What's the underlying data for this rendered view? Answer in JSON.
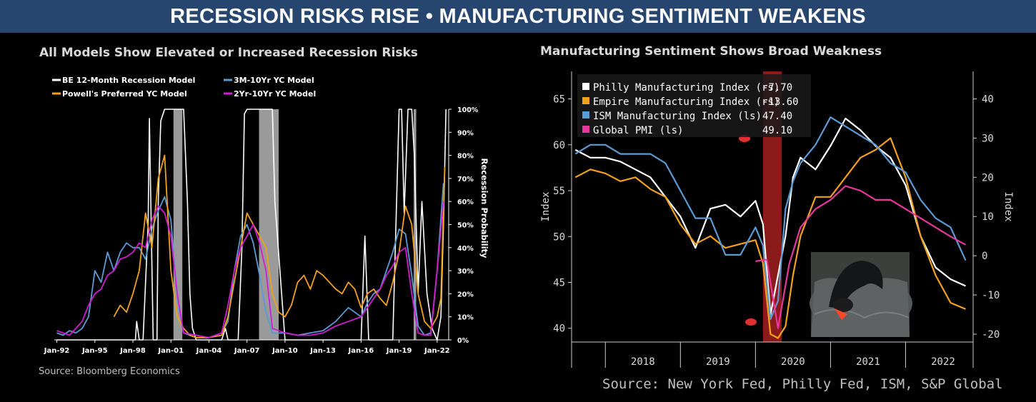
{
  "banner": {
    "title": "RECESSION RISKS RISE • MANUFACTURING SENTIMENT WEAKENS",
    "background": "#26466f"
  },
  "left_panel": {
    "source": "Source: Bloomberg Economics"
  },
  "right_panel": {
    "source": "Source: New York Fed, Philly Fed, ISM, S&P Global"
  },
  "chart_data": [
    {
      "type": "line",
      "title": "All Models Show Elevated or Increased Recession Risks",
      "ylabel_right": "Recession Probability",
      "x_range": [
        1991.8,
        2022.8
      ],
      "xticks": [
        {
          "label": "Jan-92",
          "x": 1992
        },
        {
          "label": "Jan-95",
          "x": 1995
        },
        {
          "label": "Jan-98",
          "x": 1998
        },
        {
          "label": "Jan-01",
          "x": 2001
        },
        {
          "label": "Jan-04",
          "x": 2004
        },
        {
          "label": "Jan-07",
          "x": 2007
        },
        {
          "label": "Jan-10",
          "x": 2010
        },
        {
          "label": "Jan-13",
          "x": 2013
        },
        {
          "label": "Jan-16",
          "x": 2016
        },
        {
          "label": "Jan-19",
          "x": 2019
        },
        {
          "label": "Jan-22",
          "x": 2022
        }
      ],
      "ylim": [
        0,
        100
      ],
      "yticks": [
        "0%",
        "10%",
        "20%",
        "30%",
        "40%",
        "50%",
        "60%",
        "70%",
        "80%",
        "90%",
        "100%"
      ],
      "recessions": [
        [
          2001.2,
          2001.9
        ],
        [
          2007.95,
          2009.5
        ],
        [
          2020.15,
          2020.35
        ]
      ],
      "recession_color": "#9a9a9a",
      "legend": "top-left",
      "series": [
        {
          "name": "BE 12-Month Recession Model",
          "color": "#ffffff",
          "x": [
            1992,
            1994,
            1996,
            1998.2,
            1998.3,
            1998.5,
            1998.7,
            1998.8,
            1999.2,
            1999.3,
            1999.6,
            1999.9,
            2000,
            2000.2,
            2000.5,
            2000.8,
            2001.5,
            2001.8,
            2002,
            2002.3,
            2002.5,
            2002.7,
            2003,
            2004,
            2005,
            2005.3,
            2005.5,
            2006,
            2006.3,
            2006.6,
            2006.8,
            2007,
            2008,
            2009,
            2009.2,
            2009.6,
            2010,
            2011,
            2012,
            2014,
            2015,
            2016,
            2016.3,
            2016.6,
            2016.9,
            2017.2,
            2018,
            2018.5,
            2018.7,
            2019,
            2019.2,
            2019.4,
            2019.7,
            2020,
            2020.2,
            2020.5,
            2020.8,
            2021.2,
            2021.6,
            2022,
            2022.3,
            2022.5,
            2022.7
          ],
          "y": [
            0,
            0,
            0,
            0,
            8,
            0,
            0,
            0,
            50,
            96,
            0,
            0,
            60,
            95,
            100,
            100,
            100,
            100,
            100,
            60,
            20,
            5,
            0,
            0,
            0,
            5,
            0,
            0,
            0,
            40,
            98,
            100,
            100,
            100,
            60,
            30,
            0,
            0,
            0,
            0,
            0,
            0,
            45,
            0,
            0,
            0,
            0,
            0,
            40,
            100,
            100,
            55,
            100,
            100,
            80,
            20,
            60,
            20,
            5,
            0,
            10,
            50,
            100
          ]
        },
        {
          "name": "3M-10Yr YC Model",
          "color": "#5b9bd5",
          "x": [
            1992,
            1992.5,
            1993,
            1993.5,
            1994,
            1994.5,
            1995,
            1995.5,
            1996,
            1996.5,
            1997,
            1997.5,
            1998,
            1998.5,
            1999,
            1999.5,
            2000,
            2000.5,
            2001,
            2001.5,
            2002,
            2002.5,
            2003,
            2004,
            2005,
            2005.5,
            2006,
            2006.5,
            2007,
            2007.5,
            2008,
            2008.5,
            2009,
            2010,
            2011,
            2012,
            2013,
            2014,
            2015,
            2016,
            2016.5,
            2017,
            2017.5,
            2018,
            2018.5,
            2019,
            2019.5,
            2020,
            2020.5,
            2021,
            2021.5,
            2022,
            2022.5
          ],
          "y": [
            3,
            2,
            4,
            3,
            5,
            10,
            30,
            25,
            38,
            30,
            38,
            42,
            40,
            40,
            35,
            48,
            56,
            62,
            52,
            18,
            3,
            2,
            1,
            1,
            3,
            8,
            30,
            45,
            50,
            42,
            28,
            12,
            3,
            3,
            2,
            3,
            4,
            8,
            14,
            10,
            16,
            20,
            22,
            30,
            38,
            48,
            46,
            28,
            6,
            2,
            3,
            30,
            68
          ]
        },
        {
          "name": "Powell's Preferred YC Model",
          "color": "#f2a11b",
          "x": [
            1996.5,
            1997,
            1997.5,
            1998,
            1998.5,
            1999,
            1999.5,
            2000,
            2000.5,
            2001,
            2001.5,
            2002,
            2002.5,
            2003,
            2004,
            2005,
            2005.5,
            2006,
            2006.5,
            2007,
            2007.5,
            2008,
            2008.5,
            2009,
            2009.5,
            2010,
            2010.5,
            2011,
            2011.5,
            2012,
            2012.5,
            2013,
            2013.5,
            2014,
            2014.5,
            2015,
            2015.5,
            2016,
            2016.5,
            2017,
            2017.5,
            2018,
            2018.5,
            2019,
            2019.5,
            2020,
            2020.5,
            2021,
            2021.5,
            2022,
            2022.3,
            2022.6
          ],
          "y": [
            10,
            15,
            12,
            20,
            30,
            55,
            40,
            70,
            80,
            30,
            10,
            5,
            2,
            1,
            1,
            2,
            10,
            25,
            40,
            55,
            50,
            45,
            40,
            20,
            12,
            10,
            15,
            25,
            28,
            22,
            30,
            28,
            25,
            22,
            20,
            25,
            22,
            14,
            20,
            22,
            18,
            15,
            25,
            38,
            58,
            50,
            20,
            8,
            5,
            10,
            18,
            75
          ]
        },
        {
          "name": "2Yr-10Yr YC Model",
          "color": "#d21bd2",
          "x": [
            1992,
            1992.5,
            1993,
            1993.5,
            1994,
            1994.5,
            1995,
            1995.5,
            1996,
            1996.5,
            1997,
            1997.5,
            1998,
            1998.5,
            1999,
            1999.5,
            2000,
            2000.5,
            2001,
            2001.5,
            2002,
            2003,
            2004,
            2005,
            2005.5,
            2006,
            2006.5,
            2007,
            2007.5,
            2008,
            2008.5,
            2009,
            2010,
            2011,
            2012,
            2013,
            2014,
            2015,
            2016,
            2017,
            2017.5,
            2018,
            2018.5,
            2019,
            2019.5,
            2020,
            2020.5,
            2021,
            2021.5,
            2022,
            2022.5
          ],
          "y": [
            4,
            3,
            2,
            5,
            8,
            15,
            20,
            22,
            28,
            30,
            35,
            36,
            38,
            42,
            40,
            52,
            58,
            55,
            45,
            20,
            3,
            2,
            1,
            3,
            15,
            30,
            40,
            45,
            50,
            42,
            30,
            5,
            3,
            2,
            2,
            3,
            6,
            8,
            10,
            18,
            22,
            28,
            32,
            38,
            40,
            20,
            3,
            2,
            2,
            30,
            60
          ]
        }
      ]
    },
    {
      "type": "line",
      "title": "Manufacturing Sentiment Shows Broad Weakness",
      "ylabel": "Index",
      "ylabel_right": "Index",
      "x_range": [
        2017.55,
        2022.9
      ],
      "xticks": [
        "2018",
        "2019",
        "2020",
        "2021",
        "2022"
      ],
      "ylim_left": [
        38.5,
        68
      ],
      "yticks_left": [
        40,
        45,
        50,
        55,
        60,
        65
      ],
      "ylim_right": [
        -22,
        47
      ],
      "yticks_right": [
        -20,
        -10,
        0,
        10,
        20,
        30,
        40
      ],
      "recession_band": [
        2020.1,
        2020.35
      ],
      "recession_color": "#8b1a1a",
      "legend": "top-left",
      "series": [
        {
          "name": "Philly Manufacturing Index (rs)",
          "last": "-7.70",
          "color": "#ffffff",
          "axis": "right",
          "x": [
            2017.6,
            2017.8,
            2018,
            2018.2,
            2018.4,
            2018.6,
            2018.8,
            2019,
            2019.2,
            2019.4,
            2019.6,
            2019.8,
            2020,
            2020.1,
            2020.2,
            2020.3,
            2020.4,
            2020.5,
            2020.6,
            2020.8,
            2021,
            2021.2,
            2021.4,
            2021.6,
            2021.8,
            2022,
            2022.2,
            2022.4,
            2022.6,
            2022.8
          ],
          "y": [
            27,
            25,
            25,
            24,
            22,
            20,
            15,
            10,
            2,
            12,
            13,
            10,
            14,
            8,
            -15,
            -5,
            5,
            20,
            25,
            22,
            28,
            35,
            32,
            28,
            25,
            18,
            5,
            -3,
            -6,
            -7.7
          ]
        },
        {
          "name": "Empire Manufacturing Index (rs)",
          "last": "-13.60",
          "color": "#f2a11b",
          "axis": "right",
          "x": [
            2017.6,
            2017.8,
            2018,
            2018.2,
            2018.4,
            2018.6,
            2018.8,
            2019,
            2019.2,
            2019.4,
            2019.6,
            2019.8,
            2020,
            2020.1,
            2020.2,
            2020.3,
            2020.4,
            2020.5,
            2020.6,
            2020.8,
            2021,
            2021.2,
            2021.4,
            2021.6,
            2021.8,
            2022,
            2022.2,
            2022.4,
            2022.6,
            2022.8
          ],
          "y": [
            20,
            22,
            21,
            19,
            20,
            17,
            15,
            8,
            3,
            5,
            2,
            3,
            4,
            -2,
            -20,
            -21,
            -18,
            -5,
            5,
            15,
            15,
            20,
            25,
            27,
            30,
            20,
            5,
            -5,
            -12,
            -13.6
          ]
        },
        {
          "name": "ISM Manufacturing Index (ls)",
          "last": "47.40",
          "color": "#5b9bd5",
          "axis": "left",
          "x": [
            2017.6,
            2017.8,
            2018,
            2018.2,
            2018.4,
            2018.6,
            2018.8,
            2019,
            2019.2,
            2019.4,
            2019.6,
            2019.8,
            2020,
            2020.1,
            2020.2,
            2020.3,
            2020.4,
            2020.5,
            2020.6,
            2020.8,
            2021,
            2021.2,
            2021.4,
            2021.6,
            2021.8,
            2022,
            2022.2,
            2022.4,
            2022.6,
            2022.8
          ],
          "y": [
            59,
            60,
            60,
            59,
            59,
            59,
            58,
            55,
            52,
            52,
            48,
            48,
            51,
            49,
            41,
            43,
            53,
            56,
            58,
            60,
            63,
            62,
            61,
            60,
            58,
            57,
            54,
            52,
            51,
            47.4
          ]
        },
        {
          "name": "Global PMI (ls)",
          "last": "49.10",
          "color": "#e8389a",
          "axis": "left",
          "x": [
            2020,
            2020.15,
            2020.3,
            2020.45,
            2020.6,
            2020.8,
            2021,
            2021.2,
            2021.4,
            2021.6,
            2021.8,
            2022,
            2022.2,
            2022.4,
            2022.6,
            2022.8
          ],
          "y": [
            47.3,
            47.5,
            40,
            47,
            51,
            53,
            54,
            55.5,
            55,
            54,
            54,
            53,
            52,
            51,
            50,
            49.1
          ]
        }
      ]
    }
  ]
}
